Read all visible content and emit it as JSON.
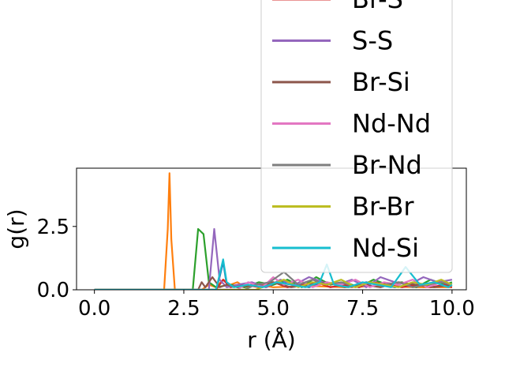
{
  "chart_data": {
    "type": "line",
    "xlabel": "r (Å)",
    "ylabel": "g(r)",
    "xlim": [
      -0.5,
      10.4
    ],
    "ylim": [
      0,
      4.8
    ],
    "xticks": [
      0.0,
      2.5,
      5.0,
      7.5,
      10.0
    ],
    "xtick_labels": [
      "0.0",
      "2.5",
      "5.0",
      "7.5",
      "10.0"
    ],
    "yticks": [
      0.0,
      2.5
    ],
    "ytick_labels": [
      "0.0",
      "2.5"
    ],
    "grid": false,
    "legend_placement": "top-right",
    "series": [
      {
        "name": "",
        "color": "#1f77b4",
        "x": [
          0,
          3.4,
          3.5,
          3.6,
          3.7,
          4.0,
          4.4,
          4.8,
          5.2,
          5.6,
          6.0,
          6.4,
          6.8,
          7.2,
          7.6,
          8.0,
          8.4,
          8.8,
          9.2,
          9.6,
          10.0
        ],
        "y": [
          0,
          0,
          0.5,
          1.1,
          0.2,
          0.1,
          0.2,
          0.1,
          0.3,
          0.2,
          0.1,
          0.3,
          0.2,
          0.1,
          0.3,
          0.2,
          0.1,
          0.2,
          0.1,
          0.3,
          0.2
        ]
      },
      {
        "name": "",
        "color": "#ff7f0e",
        "x": [
          0,
          1.95,
          2.05,
          2.1,
          2.15,
          2.25,
          3.0,
          3.2,
          3.4,
          3.6,
          3.8,
          4.0,
          4.2,
          4.6,
          5.0,
          6.0,
          7.0,
          8.0,
          9.0,
          10.0
        ],
        "y": [
          0,
          0,
          2.4,
          4.6,
          2.0,
          0,
          0,
          0.2,
          0.1,
          0.4,
          0.2,
          0.3,
          0.1,
          0.2,
          0.1,
          0.15,
          0.1,
          0.15,
          0.1,
          0.1
        ]
      },
      {
        "name": "",
        "color": "#2ca02c",
        "x": [
          0,
          2.75,
          2.9,
          3.05,
          3.2,
          3.4,
          3.8,
          4.2,
          4.6,
          5.0,
          5.4,
          5.8,
          6.2,
          6.6,
          7.0,
          7.4,
          7.8,
          8.2,
          8.6,
          9.0,
          9.4,
          9.8,
          10.0
        ],
        "y": [
          0,
          0,
          2.4,
          2.2,
          0.3,
          0.1,
          0.2,
          0.1,
          0.3,
          0.2,
          0.4,
          0.1,
          0.5,
          0.2,
          0.3,
          0.1,
          0.4,
          0.2,
          0.3,
          0.1,
          0.4,
          0.2,
          0.3
        ]
      },
      {
        "name": "Br-S",
        "color": "#d62728",
        "x": [
          0,
          3.4,
          3.6,
          3.8,
          4.2,
          4.6,
          5.0,
          5.4,
          5.8,
          6.2,
          6.6,
          7.0,
          7.4,
          7.8,
          8.2,
          8.6,
          9.0,
          9.4,
          9.8,
          10.0
        ],
        "y": [
          0,
          0,
          0.4,
          0.1,
          0.2,
          0.1,
          0.3,
          0.1,
          0.2,
          0.3,
          0.1,
          0.2,
          0.1,
          0.3,
          0.2,
          0.1,
          0.2,
          0.1,
          0.2,
          0.1
        ]
      },
      {
        "name": "S-S",
        "color": "#9467bd",
        "x": [
          0,
          3.2,
          3.35,
          3.5,
          3.7,
          4.0,
          4.4,
          4.8,
          5.2,
          5.6,
          6.0,
          6.4,
          6.8,
          7.2,
          7.6,
          8.0,
          8.4,
          8.8,
          9.2,
          9.6,
          10.0
        ],
        "y": [
          0,
          0,
          2.4,
          0.4,
          0.1,
          0.2,
          0.3,
          0.1,
          0.4,
          0.2,
          0.5,
          0.3,
          0.2,
          0.4,
          0.1,
          0.5,
          0.3,
          0.2,
          0.5,
          0.3,
          0.4
        ]
      },
      {
        "name": "Br-Si",
        "color": "#8c564b",
        "x": [
          0,
          2.9,
          3.0,
          3.1,
          3.3,
          3.5,
          3.7,
          4.0,
          4.5,
          5.0,
          5.5,
          6.0,
          6.5,
          7.0,
          7.5,
          8.0,
          8.5,
          9.0,
          9.5,
          10.0
        ],
        "y": [
          0,
          0,
          0.3,
          0.1,
          0.5,
          0.1,
          0.2,
          0.1,
          0.2,
          0.3,
          0.1,
          0.2,
          0.3,
          0.1,
          0.2,
          0.1,
          0.3,
          0.2,
          0.1,
          0.2
        ]
      },
      {
        "name": "Nd-Nd",
        "color": "#e377c2",
        "x": [
          0,
          4.0,
          4.3,
          4.7,
          5.0,
          5.3,
          5.7,
          6.1,
          6.5,
          6.9,
          7.3,
          7.7,
          8.1,
          8.5,
          8.9,
          9.3,
          9.7,
          10.0
        ],
        "y": [
          0,
          0,
          0.3,
          0.1,
          0.5,
          0.2,
          0.4,
          0.1,
          0.3,
          0.2,
          0.4,
          0.1,
          0.3,
          0.2,
          0.4,
          0.1,
          0.3,
          0.2
        ]
      },
      {
        "name": "Br-Nd",
        "color": "#7f7f7f",
        "x": [
          0,
          4.2,
          4.5,
          4.9,
          5.3,
          5.7,
          6.1,
          6.5,
          6.9,
          7.3,
          7.7,
          8.1,
          8.5,
          8.9,
          9.3,
          9.7,
          10.0
        ],
        "y": [
          0,
          0,
          0.2,
          0.3,
          0.7,
          0.2,
          0.4,
          0.2,
          0.3,
          0.1,
          0.3,
          0.2,
          0.3,
          0.1,
          0.2,
          0.3,
          0.2
        ]
      },
      {
        "name": "Br-Br",
        "color": "#bcbd22",
        "x": [
          0,
          4.5,
          4.9,
          5.3,
          5.7,
          6.1,
          6.5,
          6.9,
          7.3,
          7.7,
          8.1,
          8.5,
          8.9,
          9.3,
          9.7,
          10.0
        ],
        "y": [
          0,
          0,
          0.2,
          0.4,
          0.1,
          0.3,
          0.2,
          0.4,
          0.1,
          0.3,
          0.2,
          0.1,
          0.3,
          0.2,
          0.4,
          0.2
        ]
      },
      {
        "name": "Nd-Si",
        "color": "#17becf",
        "x": [
          0,
          3.4,
          3.5,
          3.6,
          3.7,
          3.9,
          4.3,
          4.7,
          5.1,
          5.5,
          5.9,
          6.3,
          6.5,
          6.7,
          7.1,
          7.5,
          7.9,
          8.3,
          8.7,
          9.1,
          9.5,
          9.9,
          10.0
        ],
        "y": [
          0,
          0,
          0.6,
          1.2,
          0.3,
          0.1,
          0.2,
          0.1,
          0.3,
          0.2,
          0.1,
          0.3,
          1.0,
          0.2,
          0.1,
          0.3,
          0.2,
          0.1,
          0.9,
          0.2,
          0.3,
          0.1,
          0.2
        ]
      }
    ]
  }
}
